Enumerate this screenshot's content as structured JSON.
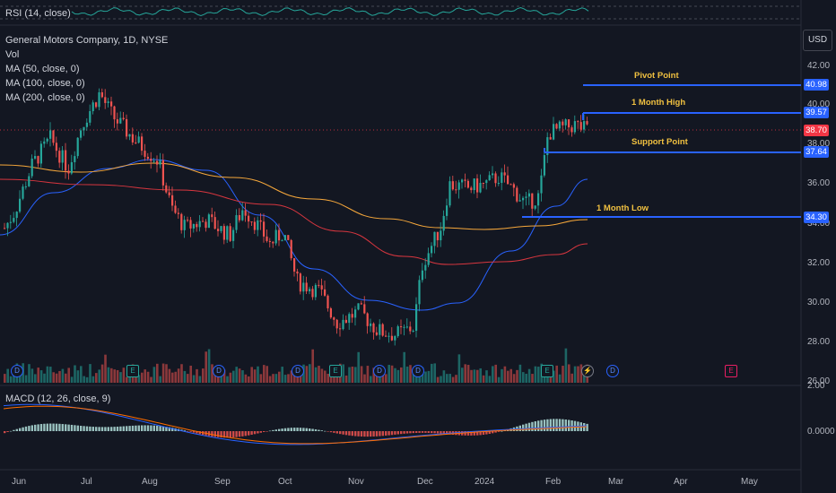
{
  "rsi": {
    "label": "RSI (14, close)"
  },
  "main_legend": {
    "title": "General Motors Company, 1D, NYSE",
    "vol": "Vol",
    "ma50": "MA (50, close, 0)",
    "ma100": "MA (100, close, 0)",
    "ma200": "MA (200, close, 0)"
  },
  "currency": "USD",
  "price_axis": [
    "42.00",
    "40.00",
    "38.00",
    "36.00",
    "34.00",
    "32.00",
    "30.00",
    "28.00",
    "26.00"
  ],
  "price_tags": {
    "pivot": "40.98",
    "month_high": "39.57",
    "last": "38.70",
    "support": "37.64",
    "month_low": "34.30"
  },
  "levels": {
    "pivot": "Pivot Point",
    "month_high": "1 Month High",
    "support": "Support Point",
    "month_low": "1 Month Low"
  },
  "macd": {
    "label": "MACD (12, 26, close, 9)",
    "axis_top": "2.00",
    "axis_zero": "0.0000"
  },
  "time_axis": [
    "Jun",
    "Jul",
    "Aug",
    "Sep",
    "Oct",
    "Nov",
    "Dec",
    "2024",
    "Feb",
    "Mar",
    "Apr",
    "May"
  ],
  "events": [
    "D",
    "E",
    "D",
    "D",
    "E",
    "D",
    "D",
    "E",
    "D",
    "E"
  ],
  "colors": {
    "background": "#131722",
    "up": "#26a69a",
    "down": "#ef5350",
    "ma50": "#2962ff",
    "ma100": "#f7a83b",
    "ma200": "#d8363f",
    "level_line": "#2962ff",
    "level_text": "#f0c040",
    "last_price": "#f23645",
    "rsi_line": "#26a69a",
    "macd_line": "#2962ff",
    "signal_line": "#ff6d00"
  }
}
